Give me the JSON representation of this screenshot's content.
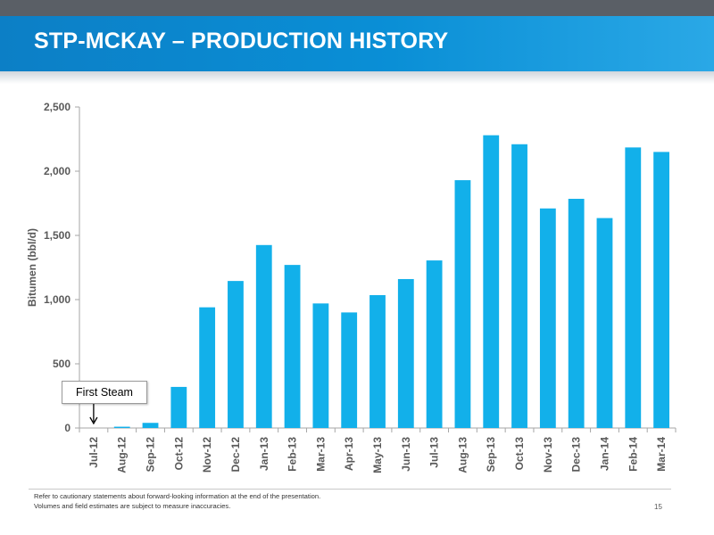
{
  "header": {
    "title": "STP-MCKAY – PRODUCTION HISTORY"
  },
  "colors": {
    "header_strip": "#5a5f66",
    "banner": "#0a8fd6",
    "bar": "#12b0ea",
    "axis_text": "#595959"
  },
  "chart_data": {
    "type": "bar",
    "ylabel": "Bitumen (bbl/d)",
    "xlabel": "",
    "ylim": [
      0,
      2500
    ],
    "yticks": [
      0,
      500,
      1000,
      1500,
      2000,
      2500
    ],
    "ytick_labels": [
      "0",
      "500",
      "1,000",
      "1,500",
      "2,000",
      "2,500"
    ],
    "grid": false,
    "categories": [
      "Jul-12",
      "Aug-12",
      "Sep-12",
      "Oct-12",
      "Nov-12",
      "Dec-12",
      "Jan-13",
      "Feb-13",
      "Mar-13",
      "Apr-13",
      "May-13",
      "Jun-13",
      "Jul-13",
      "Aug-13",
      "Sep-13",
      "Oct-13",
      "Nov-13",
      "Dec-13",
      "Jan-14",
      "Feb-14",
      "Mar-14"
    ],
    "values": [
      0,
      10,
      40,
      320,
      940,
      1145,
      1425,
      1270,
      970,
      900,
      1035,
      1160,
      1305,
      1930,
      2280,
      2210,
      1710,
      1785,
      1635,
      2185,
      2150
    ],
    "annotations": [
      {
        "text": "First Steam",
        "category": "Jul-12"
      }
    ]
  },
  "footer": {
    "note_line1": "Refer to cautionary statements about forward-looking information at the end of the presentation.",
    "note_line2": "Volumes and field estimates are subject to measure inaccuracies.",
    "page_number": "15"
  }
}
